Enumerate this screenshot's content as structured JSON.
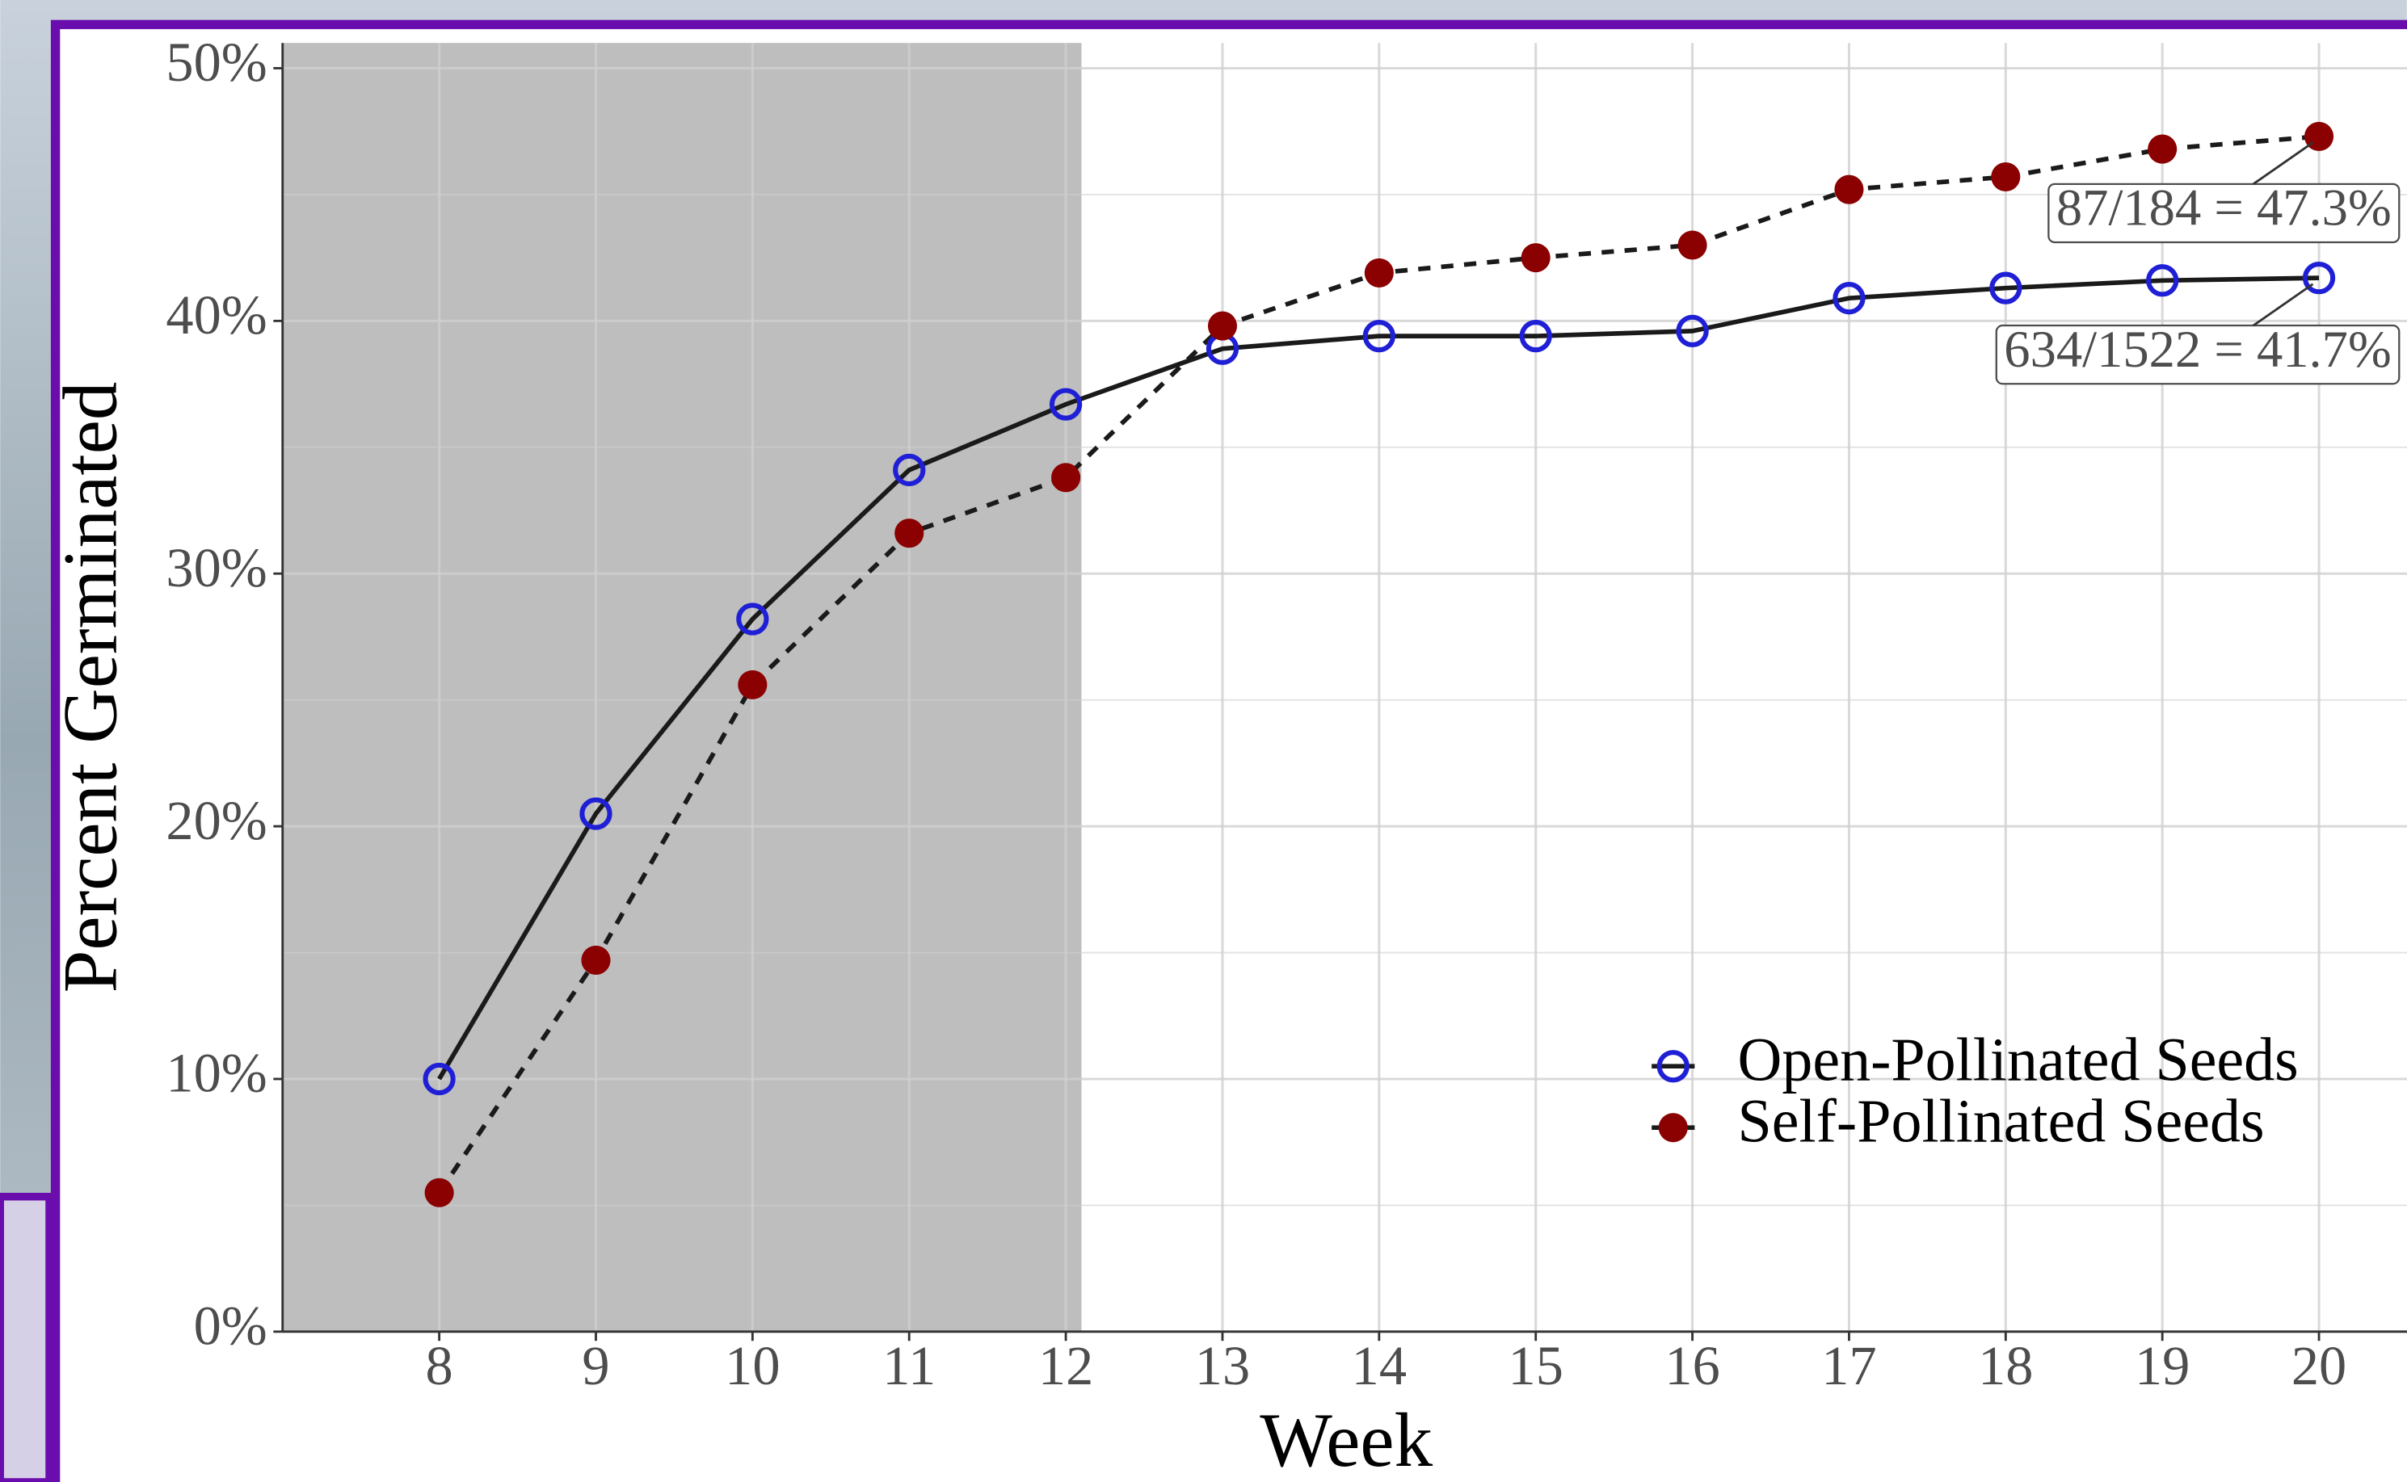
{
  "chart_data": {
    "type": "line",
    "x_label": "Week",
    "y_label": "Percent Germinated",
    "x": [
      8,
      9,
      10,
      11,
      12,
      13,
      14,
      15,
      16,
      17,
      18,
      19,
      20
    ],
    "series": [
      {
        "name": "Open-Pollinated Seeds",
        "color": "#1f1fd6",
        "marker": "open-circle",
        "line_style": "solid",
        "values": [
          10.0,
          20.5,
          28.2,
          34.1,
          36.7,
          38.9,
          39.4,
          39.4,
          39.6,
          40.9,
          41.3,
          41.6,
          41.7
        ],
        "end_label": "634/1522 = 41.7%"
      },
      {
        "name": "Self-Pollinated Seeds",
        "color": "#8b0000",
        "marker": "filled-circle",
        "line_style": "dashed",
        "values": [
          5.5,
          14.7,
          25.6,
          31.6,
          33.8,
          39.8,
          41.9,
          42.5,
          43.0,
          45.2,
          45.7,
          46.8,
          47.3
        ],
        "end_label": "87/184 = 47.3%"
      }
    ],
    "line_color": "#1a1a1a",
    "xlim": [
      7,
      20.6
    ],
    "xticks": [
      8,
      9,
      10,
      11,
      12,
      13,
      14,
      15,
      16,
      17,
      18,
      19,
      20
    ],
    "ylim": [
      0,
      51
    ],
    "yticks": [
      {
        "value": 0,
        "label": "0%"
      },
      {
        "value": 10,
        "label": "10%"
      },
      {
        "value": 20,
        "label": "20%"
      },
      {
        "value": 30,
        "label": "30%"
      },
      {
        "value": 40,
        "label": "40%"
      },
      {
        "value": 50,
        "label": "50%"
      }
    ],
    "shaded_region": [
      7,
      12.1
    ],
    "grid": true,
    "legend_position": "bottom-right"
  }
}
